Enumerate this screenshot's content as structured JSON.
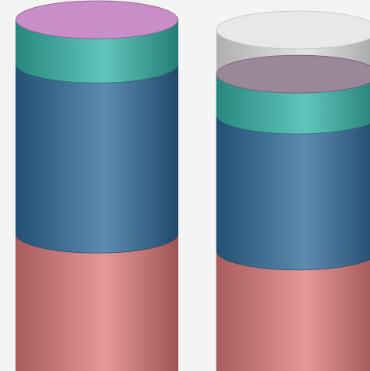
{
  "chart_data": {
    "type": "bar",
    "style": "stacked-3d-cylinder",
    "categories": [
      "",
      ""
    ],
    "ylim": [
      0,
      100
    ],
    "grid": false,
    "legend": "none",
    "series": [
      {
        "color": "#e07a7a",
        "values": [
          40,
          35
        ]
      },
      {
        "color": "#2f6a9a",
        "values": [
          50,
          40
        ]
      },
      {
        "color": "#35b5a8",
        "values": [
          13,
          12
        ]
      },
      {
        "color": "#c98ec7",
        "values": [
          0,
          0
        ]
      }
    ],
    "top_cap_colors": [
      "#c98ec7",
      "#9a8898"
    ],
    "empty_color": "#d9d9d9"
  }
}
